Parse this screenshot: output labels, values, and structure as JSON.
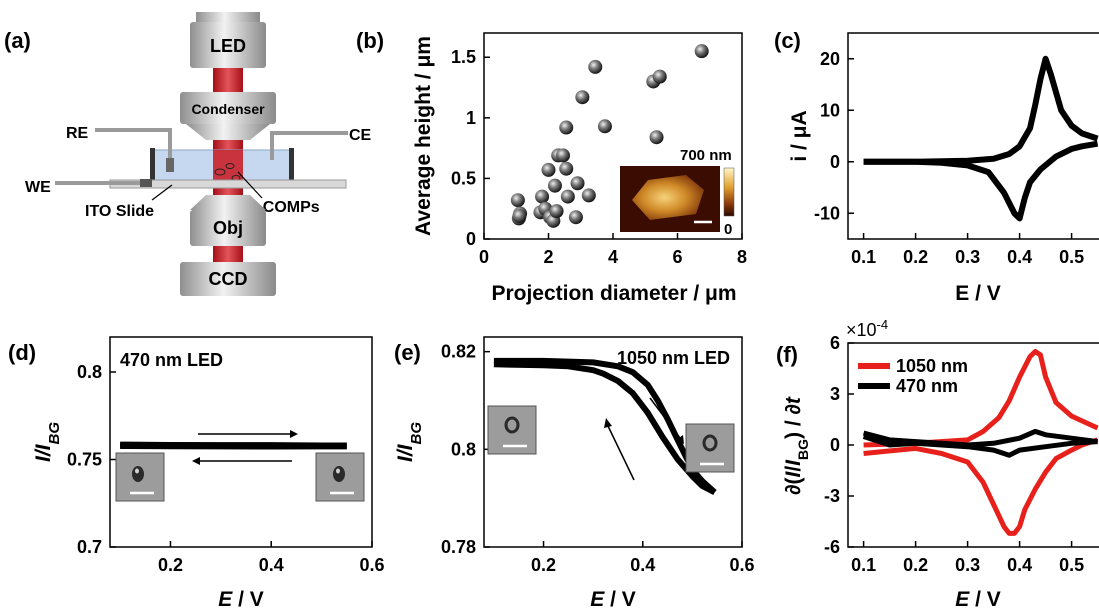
{
  "figure": {
    "panels": {
      "a": {
        "label": "(a)"
      },
      "b": {
        "label": "(b)"
      },
      "c": {
        "label": "(c)"
      },
      "d": {
        "label": "(d)"
      },
      "e": {
        "label": "(e)"
      },
      "f": {
        "label": "(f)"
      }
    }
  },
  "schematic": {
    "led": "LED",
    "condenser": "Condenser",
    "re": "RE",
    "ce": "CE",
    "we": "WE",
    "ito": "ITO Slide",
    "lcomps": "LCOMPs",
    "obj": "Obj",
    "ccd": "CCD"
  },
  "colors": {
    "red": "#e8201c",
    "black": "#000000",
    "beam": "#c8161e",
    "cell": "#c6d8f0"
  },
  "chart_data": [
    {
      "id": "b",
      "type": "scatter",
      "xlabel": "Projection diameter / μm",
      "ylabel": "Average height / μm",
      "xlim": [
        0,
        8
      ],
      "ylim": [
        0,
        1.7
      ],
      "xticks": [
        "0",
        "2",
        "4",
        "6",
        "8"
      ],
      "xtick_values": [
        0,
        2,
        4,
        6,
        8
      ],
      "yticks": [
        "0",
        "0.5",
        "1",
        "1.5"
      ],
      "ytick_values": [
        0,
        0.5,
        1,
        1.5
      ],
      "inset": {
        "scale_label": "700 nm",
        "colorbar_min": "0"
      },
      "points": [
        [
          1.05,
          0.32
        ],
        [
          1.08,
          0.17
        ],
        [
          1.12,
          0.21
        ],
        [
          1.1,
          0.19
        ],
        [
          1.75,
          0.22
        ],
        [
          1.8,
          0.35
        ],
        [
          1.9,
          0.25
        ],
        [
          2.0,
          0.57
        ],
        [
          2.05,
          0.18
        ],
        [
          2.15,
          0.15
        ],
        [
          2.2,
          0.44
        ],
        [
          2.25,
          0.23
        ],
        [
          2.3,
          0.69
        ],
        [
          2.45,
          0.69
        ],
        [
          2.55,
          0.58
        ],
        [
          2.6,
          0.35
        ],
        [
          2.55,
          0.92
        ],
        [
          2.85,
          0.18
        ],
        [
          2.9,
          0.46
        ],
        [
          3.05,
          1.17
        ],
        [
          3.25,
          0.36
        ],
        [
          3.45,
          1.42
        ],
        [
          3.75,
          0.93
        ],
        [
          5.25,
          1.3
        ],
        [
          5.35,
          0.84
        ],
        [
          5.45,
          1.34
        ],
        [
          6.75,
          1.55
        ]
      ]
    },
    {
      "id": "c",
      "type": "line",
      "xlabel": "E / V",
      "ylabel": "i / μA",
      "xlim": [
        0.07,
        0.57
      ],
      "ylim": [
        -15,
        25
      ],
      "xticks": [
        "0.1",
        "0.2",
        "0.3",
        "0.4",
        "0.5"
      ],
      "xtick_values": [
        0.1,
        0.2,
        0.3,
        0.4,
        0.5
      ],
      "yticks": [
        "-10",
        "0",
        "10",
        "20"
      ],
      "ytick_values": [
        -10,
        0,
        10,
        20
      ],
      "forward": {
        "x": [
          0.1,
          0.2,
          0.3,
          0.35,
          0.38,
          0.4,
          0.42,
          0.43,
          0.44,
          0.45,
          0.46,
          0.48,
          0.5,
          0.52,
          0.55
        ],
        "y": [
          0,
          0,
          0.2,
          0.6,
          1.5,
          3,
          6.5,
          11,
          16,
          20,
          17,
          10,
          7,
          5.5,
          4.5
        ]
      },
      "reverse": {
        "x": [
          0.55,
          0.52,
          0.5,
          0.47,
          0.44,
          0.42,
          0.41,
          0.4,
          0.39,
          0.37,
          0.34,
          0.3,
          0.25,
          0.2,
          0.1
        ],
        "y": [
          3.5,
          3,
          2.5,
          1,
          -1.5,
          -4,
          -7,
          -11,
          -10,
          -6,
          -2,
          -0.7,
          -0.2,
          0,
          0
        ]
      }
    },
    {
      "id": "d",
      "type": "line",
      "xlabel": "E / V",
      "ylabel": "I/I_BG",
      "annotation": "470 nm LED",
      "xlim": [
        0.08,
        0.6
      ],
      "ylim": [
        0.7,
        0.82
      ],
      "xticks": [
        "0.2",
        "0.4",
        "0.6"
      ],
      "xtick_values": [
        0.2,
        0.4,
        0.6
      ],
      "yticks": [
        "0.7",
        "0.75",
        "0.8"
      ],
      "ytick_values": [
        0.7,
        0.75,
        0.8
      ],
      "forward": {
        "x": [
          0.1,
          0.2,
          0.3,
          0.4,
          0.5,
          0.55
        ],
        "y": [
          0.7585,
          0.7583,
          0.7582,
          0.7582,
          0.758,
          0.758
        ]
      },
      "reverse": {
        "x": [
          0.55,
          0.5,
          0.4,
          0.3,
          0.2,
          0.1
        ],
        "y": [
          0.7575,
          0.7575,
          0.7574,
          0.7575,
          0.7576,
          0.7577
        ]
      }
    },
    {
      "id": "e",
      "type": "line",
      "xlabel": "E / V",
      "ylabel": "I/I_BG",
      "annotation": "1050 nm LED",
      "xlim": [
        0.08,
        0.6
      ],
      "ylim": [
        0.78,
        0.823
      ],
      "xticks": [
        "0.2",
        "0.4",
        "0.6"
      ],
      "xtick_values": [
        0.2,
        0.4,
        0.6
      ],
      "yticks": [
        "0.78",
        "0.8",
        "0.82"
      ],
      "ytick_values": [
        0.78,
        0.8,
        0.82
      ],
      "forward": {
        "x": [
          0.1,
          0.2,
          0.3,
          0.35,
          0.38,
          0.41,
          0.43,
          0.45,
          0.47,
          0.5,
          0.52,
          0.545
        ],
        "y": [
          0.8181,
          0.8181,
          0.8178,
          0.817,
          0.8158,
          0.8132,
          0.81,
          0.8062,
          0.802,
          0.7958,
          0.7935,
          0.7912
        ]
      },
      "reverse": {
        "x": [
          0.545,
          0.52,
          0.5,
          0.47,
          0.44,
          0.41,
          0.38,
          0.35,
          0.32,
          0.3,
          0.25,
          0.2,
          0.1
        ],
        "y": [
          0.7912,
          0.7925,
          0.7945,
          0.798,
          0.8025,
          0.8075,
          0.8115,
          0.814,
          0.8155,
          0.8162,
          0.817,
          0.8172,
          0.8174
        ]
      }
    },
    {
      "id": "f",
      "type": "line",
      "xlabel": "E / V",
      "ylabel": "∂(I/I_BG) / ∂t",
      "exponent": "×10",
      "exponent_power": "-4",
      "xlim": [
        0.07,
        0.57
      ],
      "ylim": [
        -6,
        6
      ],
      "xticks": [
        "0.1",
        "0.2",
        "0.3",
        "0.4",
        "0.5"
      ],
      "xtick_values": [
        0.1,
        0.2,
        0.3,
        0.4,
        0.5
      ],
      "yticks": [
        "-6",
        "-3",
        "0",
        "3",
        "6"
      ],
      "ytick_values": [
        -6,
        -3,
        0,
        3,
        6
      ],
      "series": [
        {
          "name": "1050 nm",
          "color": "#e8201c",
          "forward": {
            "x": [
              0.1,
              0.2,
              0.3,
              0.33,
              0.36,
              0.38,
              0.4,
              0.42,
              0.43,
              0.44,
              0.45,
              0.47,
              0.5,
              0.55
            ],
            "y": [
              0,
              0.1,
              0.3,
              0.8,
              1.6,
              2.6,
              4,
              5.2,
              5.5,
              5.3,
              4,
              2.5,
              1.7,
              1.0
            ]
          },
          "reverse": {
            "x": [
              0.55,
              0.52,
              0.5,
              0.47,
              0.45,
              0.43,
              0.41,
              0.4,
              0.39,
              0.38,
              0.37,
              0.35,
              0.33,
              0.3,
              0.25,
              0.2,
              0.1
            ],
            "y": [
              0.3,
              0,
              -0.3,
              -0.8,
              -1.6,
              -2.6,
              -3.8,
              -4.8,
              -5.2,
              -5.2,
              -4.8,
              -3.5,
              -2.2,
              -1.0,
              -0.5,
              -0.2,
              -0.5
            ]
          }
        },
        {
          "name": "470 nm",
          "color": "#000000",
          "forward": {
            "x": [
              0.1,
              0.15,
              0.2,
              0.25,
              0.3,
              0.35,
              0.4,
              0.43,
              0.45,
              0.5,
              0.55
            ],
            "y": [
              0.7,
              0.3,
              0.2,
              0.1,
              0.0,
              0.1,
              0.4,
              0.8,
              0.6,
              0.4,
              0.2
            ]
          },
          "reverse": {
            "x": [
              0.55,
              0.5,
              0.45,
              0.4,
              0.38,
              0.35,
              0.3,
              0.25,
              0.2,
              0.15,
              0.1
            ],
            "y": [
              0.2,
              0.1,
              -0.1,
              -0.3,
              -0.6,
              -0.3,
              -0.1,
              0.0,
              0.1,
              0.0,
              0.5
            ]
          }
        }
      ]
    }
  ]
}
